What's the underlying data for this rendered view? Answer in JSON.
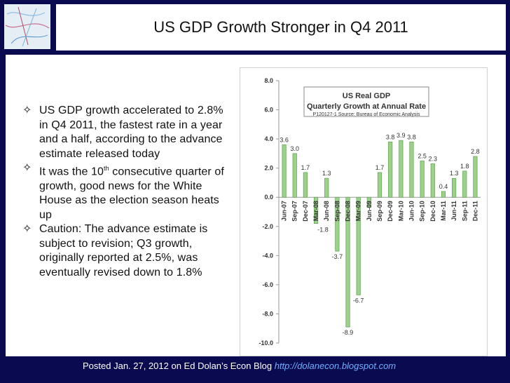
{
  "slide": {
    "title": "US GDP Growth Stronger in Q4 2011",
    "bullets": [
      {
        "text": "US GDP growth accelerated to 2.8% in Q4 2011, the fastest rate in a year and a half, according to the advance estimate released today"
      },
      {
        "pre": "It was the 10",
        "sup": "th",
        "post": " consecutive quarter of growth, good news for the White House as the election season heats up"
      },
      {
        "text": "Caution: The advance estimate is subject to revision; Q3 growth, originally reported at 2.5%, was eventually revised down to 1.8%"
      }
    ],
    "bullet_icon": "diamond-star-icon",
    "footer": {
      "text": "Posted Jan. 27, 2012 on Ed Dolan’s Econ Blog",
      "link": "http://dolanecon.blogspot.com"
    },
    "colors": {
      "frame": "#0a0a50",
      "bar_fill": "#9bd28a",
      "bar_stroke": "#5fa04e",
      "link": "#6fb0ff"
    }
  },
  "chart_data": {
    "type": "bar",
    "title": "US  Real GDP",
    "subtitle": "Quarterly Growth at Annual Rate",
    "source": "P120127-1 Source: Bureau of Economic Analysis",
    "categories": [
      "Jun-07",
      "Sep-07",
      "Dec-07",
      "Mar-08",
      "Jun-08",
      "Sep-08",
      "Dec-08",
      "Mar-09",
      "Jun-09",
      "Sep-09",
      "Dec-09",
      "Mar-10",
      "Jun-10",
      "Sep-10",
      "Dec-10",
      "Mar-11",
      "Jun-11",
      "Sep-11",
      "Dec-11"
    ],
    "values": [
      3.6,
      3.0,
      1.7,
      -1.8,
      1.3,
      -3.7,
      -8.9,
      -6.7,
      -0.7,
      1.7,
      3.8,
      3.9,
      3.8,
      2.5,
      2.3,
      0.4,
      1.3,
      1.8,
      2.8
    ],
    "data_labels": [
      "3.6",
      "3.0",
      "1.7",
      "-1.8",
      "1.3",
      "-3.7",
      "-8.9",
      "-6.7",
      "",
      "1.7",
      "3.8",
      "3.9",
      "3.8",
      "2.5",
      "2.3",
      "0.4",
      "1.3",
      "1.8",
      "2.8"
    ],
    "ylim": [
      -10,
      8
    ],
    "yticks": [
      "8.0",
      "6.0",
      "4.0",
      "2.0",
      "0.0",
      "-2.0",
      "-4.0",
      "-6.0",
      "-8.0",
      "-10.0"
    ],
    "grid": false,
    "legend": "none"
  }
}
